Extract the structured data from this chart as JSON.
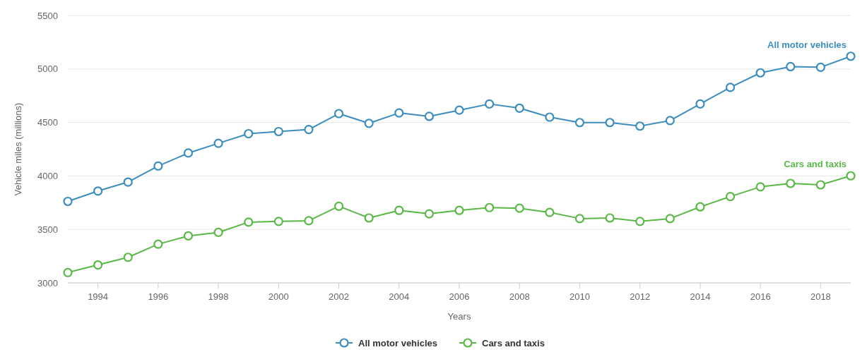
{
  "chart_data": {
    "type": "line",
    "xlabel": "Years",
    "ylabel": "Vehicle miles (millions)",
    "x": [
      1993,
      1994,
      1995,
      1996,
      1997,
      1998,
      1999,
      2000,
      2001,
      2002,
      2003,
      2004,
      2005,
      2006,
      2007,
      2008,
      2009,
      2010,
      2011,
      2012,
      2013,
      2014,
      2015,
      2016,
      2017,
      2018,
      2019
    ],
    "series": [
      {
        "name": "All motor vehicles",
        "color": "#3b8dbd",
        "values": [
          3762,
          3859,
          3943,
          4092,
          4214,
          4305,
          4395,
          4415,
          4434,
          4583,
          4492,
          4589,
          4557,
          4615,
          4673,
          4634,
          4550,
          4499,
          4499,
          4466,
          4518,
          4673,
          4828,
          4964,
          5022,
          5016,
          5119
        ]
      },
      {
        "name": "Cars and taxis",
        "color": "#5ab946",
        "values": [
          3097,
          3168,
          3239,
          3362,
          3439,
          3472,
          3568,
          3575,
          3581,
          3717,
          3607,
          3678,
          3646,
          3678,
          3704,
          3698,
          3659,
          3601,
          3607,
          3575,
          3601,
          3711,
          3807,
          3898,
          3930,
          3917,
          4001
        ]
      }
    ],
    "xlim": [
      1993,
      2019
    ],
    "xticks": [
      1994,
      1996,
      1998,
      2000,
      2002,
      2004,
      2006,
      2008,
      2010,
      2012,
      2014,
      2016,
      2018
    ],
    "ylim": [
      3000,
      5500
    ],
    "yticks": [
      3000,
      3500,
      4000,
      4500,
      5000,
      5500
    ],
    "grid": "y",
    "legend": "bottom",
    "marker": "circle",
    "line_style": "solid"
  }
}
